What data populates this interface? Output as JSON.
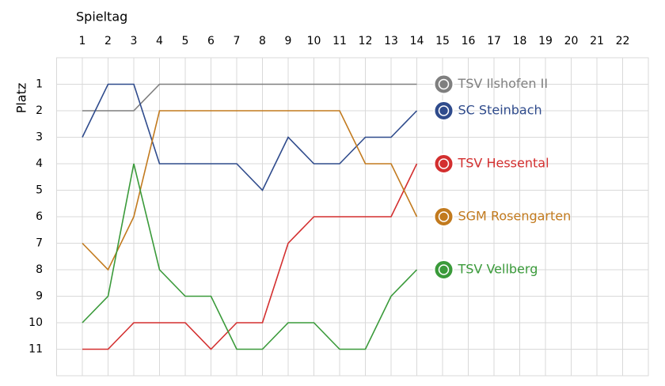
{
  "chart_data": {
    "type": "line",
    "x_label": "Spieltag",
    "y_label": "Platz",
    "x": [
      1,
      2,
      3,
      4,
      5,
      6,
      7,
      8,
      9,
      10,
      11,
      12,
      13,
      14,
      15,
      16,
      17,
      18,
      19,
      20,
      21,
      22
    ],
    "xlim": [
      0,
      23
    ],
    "xticks": [
      1,
      2,
      3,
      4,
      5,
      6,
      7,
      8,
      9,
      10,
      11,
      12,
      13,
      14,
      15,
      16,
      17,
      18,
      19,
      20,
      21,
      22
    ],
    "ylim": [
      0,
      12
    ],
    "yticks": [
      1,
      2,
      3,
      4,
      5,
      6,
      7,
      8,
      9,
      10,
      11
    ],
    "y_inverted": true,
    "grid": true,
    "series": [
      {
        "name": "TSV Ilshofen II",
        "color": "#7f7f7f",
        "values": [
          2,
          2,
          2,
          1,
          1,
          1,
          1,
          1,
          1,
          1,
          1,
          1,
          1,
          1,
          null,
          null,
          null,
          null,
          null,
          null,
          null,
          null
        ]
      },
      {
        "name": "SC Steinbach",
        "color": "#2f4b8c",
        "values": [
          3,
          1,
          1,
          4,
          4,
          4,
          4,
          5,
          3,
          4,
          4,
          3,
          3,
          2,
          null,
          null,
          null,
          null,
          null,
          null,
          null,
          null
        ]
      },
      {
        "name": "TSV Hessental",
        "color": "#d32f2f",
        "values": [
          11,
          11,
          10,
          10,
          10,
          11,
          10,
          10,
          7,
          6,
          6,
          6,
          6,
          4,
          null,
          null,
          null,
          null,
          null,
          null,
          null,
          null
        ]
      },
      {
        "name": "SGM Rosengarten",
        "color": "#c27a1e",
        "values": [
          7,
          8,
          6,
          2,
          2,
          2,
          2,
          2,
          2,
          2,
          2,
          4,
          4,
          6,
          null,
          null,
          null,
          null,
          null,
          null,
          null,
          null
        ]
      },
      {
        "name": "TSV Vellberg",
        "color": "#3a9a3a",
        "values": [
          10,
          9,
          4,
          8,
          9,
          9,
          11,
          11,
          10,
          10,
          11,
          11,
          9,
          8,
          null,
          null,
          null,
          null,
          null,
          null,
          null,
          null
        ]
      }
    ]
  }
}
